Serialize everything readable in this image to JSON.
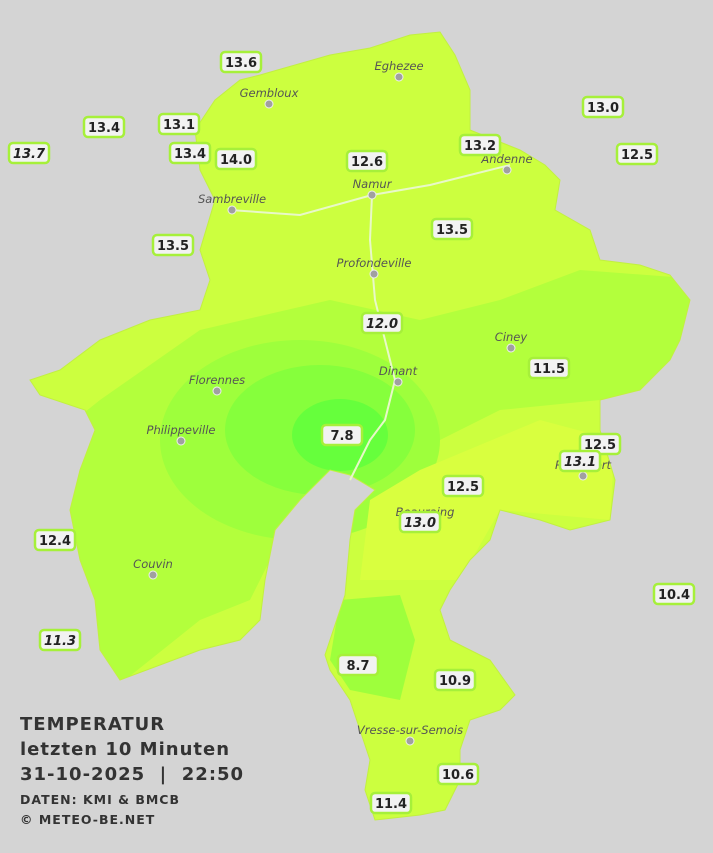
{
  "title": {
    "line1": "TEMPERATUR",
    "line2": "letzten 10 Minuten",
    "line3": "31-10-2025  |  22:50",
    "source": "DATEN: KMI & BMCB",
    "copyright": "© METEO-BE.NET"
  },
  "towns": [
    "Eghezee",
    "Gembloux",
    "Andenne",
    "Namur",
    "Sambreville",
    "Profondeville",
    "Ciney",
    "Florennes",
    "Dinant",
    "Philippeville",
    "Rochefort",
    "Beauraing",
    "Couvin",
    "Vresse-sur-Semois"
  ],
  "stations": [
    "13.6",
    "13.4",
    "13.1",
    "13.7",
    "13.4",
    "14.0",
    "12.6",
    "13.2",
    "13.0",
    "12.5",
    "13.5",
    "13.5",
    "12.0",
    "11.5",
    "7.8",
    "12.5",
    "13.1",
    "12.5",
    "13.0",
    "12.4",
    "10.4",
    "11.3",
    "8.7",
    "10.9",
    "10.6",
    "11.4"
  ]
}
